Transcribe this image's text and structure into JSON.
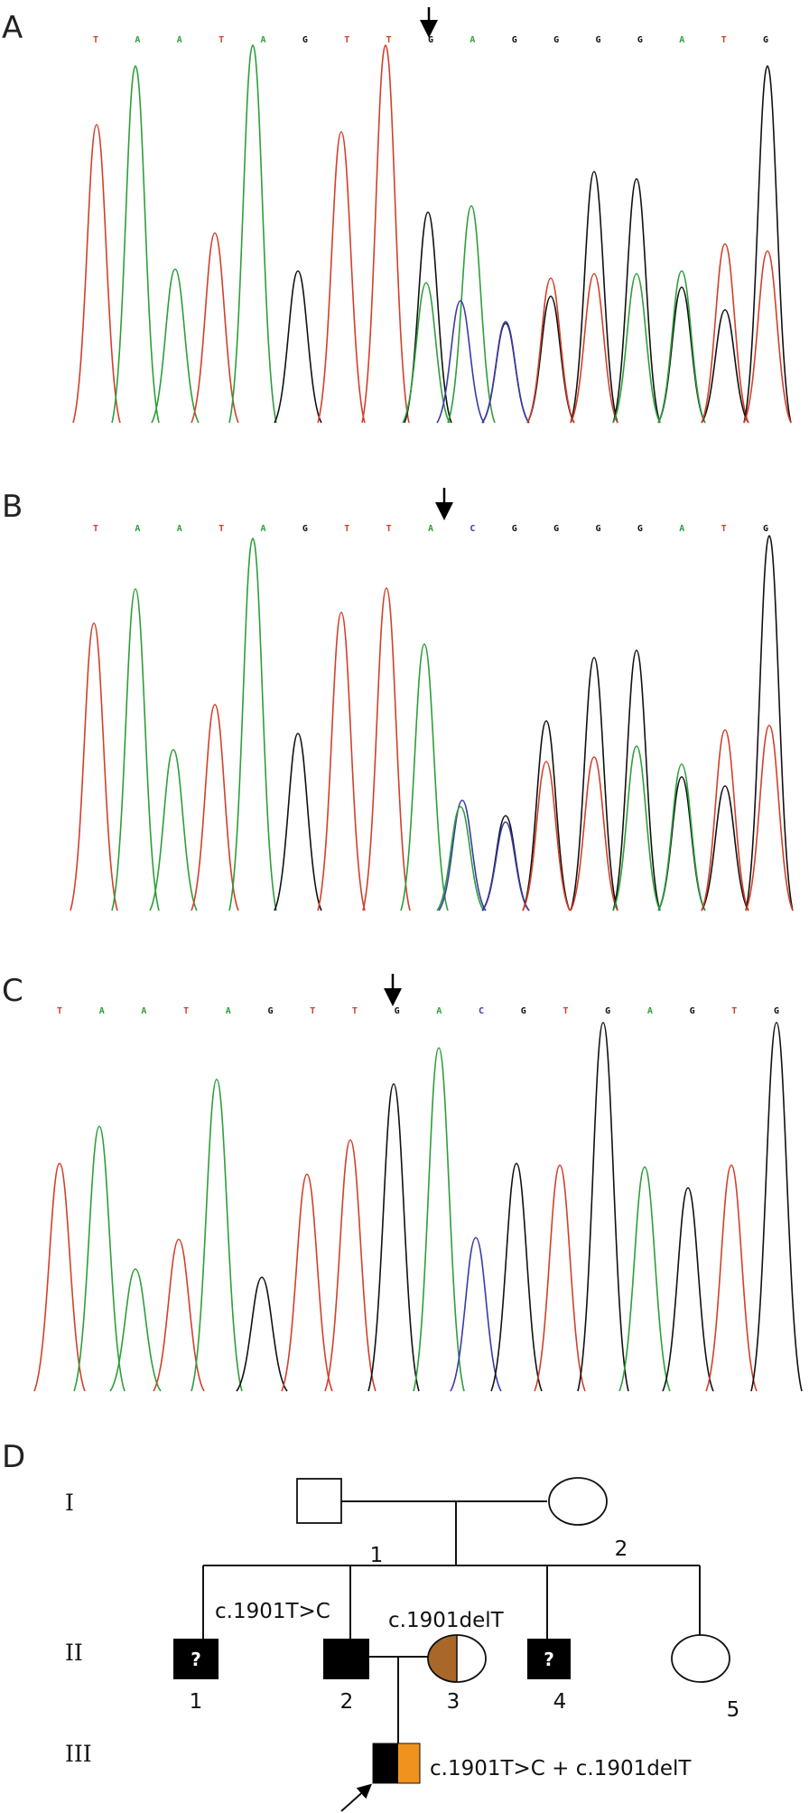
{
  "colors": {
    "A": "#2e9e3a",
    "T": "#d1402a",
    "G": "#111111",
    "C": "#3a3aa8",
    "affected": "#000000",
    "carrier_brown": "#a9672a",
    "carrier_orange": "#f0931e"
  },
  "panels": [
    {
      "label": "A",
      "bases": [
        "T",
        "A",
        "A",
        "T",
        "A",
        "G",
        "T",
        "T",
        "G",
        "A",
        "G",
        "G",
        "G",
        "G",
        "A",
        "T",
        "G"
      ],
      "arrow_after_base": 8
    },
    {
      "label": "B",
      "bases": [
        "T",
        "A",
        "A",
        "T",
        "A",
        "G",
        "T",
        "T",
        "A",
        "C",
        "G",
        "G",
        "G",
        "G",
        "A",
        "T",
        "G"
      ],
      "arrow_after_base": 9
    },
    {
      "label": "C",
      "bases": [
        "T",
        "A",
        "A",
        "T",
        "A",
        "G",
        "T",
        "T",
        "G",
        "A",
        "C",
        "G",
        "T",
        "G",
        "A",
        "G",
        "T",
        "G"
      ],
      "arrow_after_base": 8
    }
  ],
  "pedigree": {
    "label": "D",
    "generations": [
      "I",
      "II",
      "III"
    ],
    "numbers": {
      "I1": "1",
      "I2": "2",
      "II1": "1",
      "II2": "2",
      "II3": "3",
      "II4": "4",
      "II5": "5"
    },
    "unknown_mark": "?",
    "mutations": {
      "II2": "c.1901T>C",
      "II3": "c.1901delT",
      "III1": "c.1901T>C + c.1901delT"
    }
  }
}
